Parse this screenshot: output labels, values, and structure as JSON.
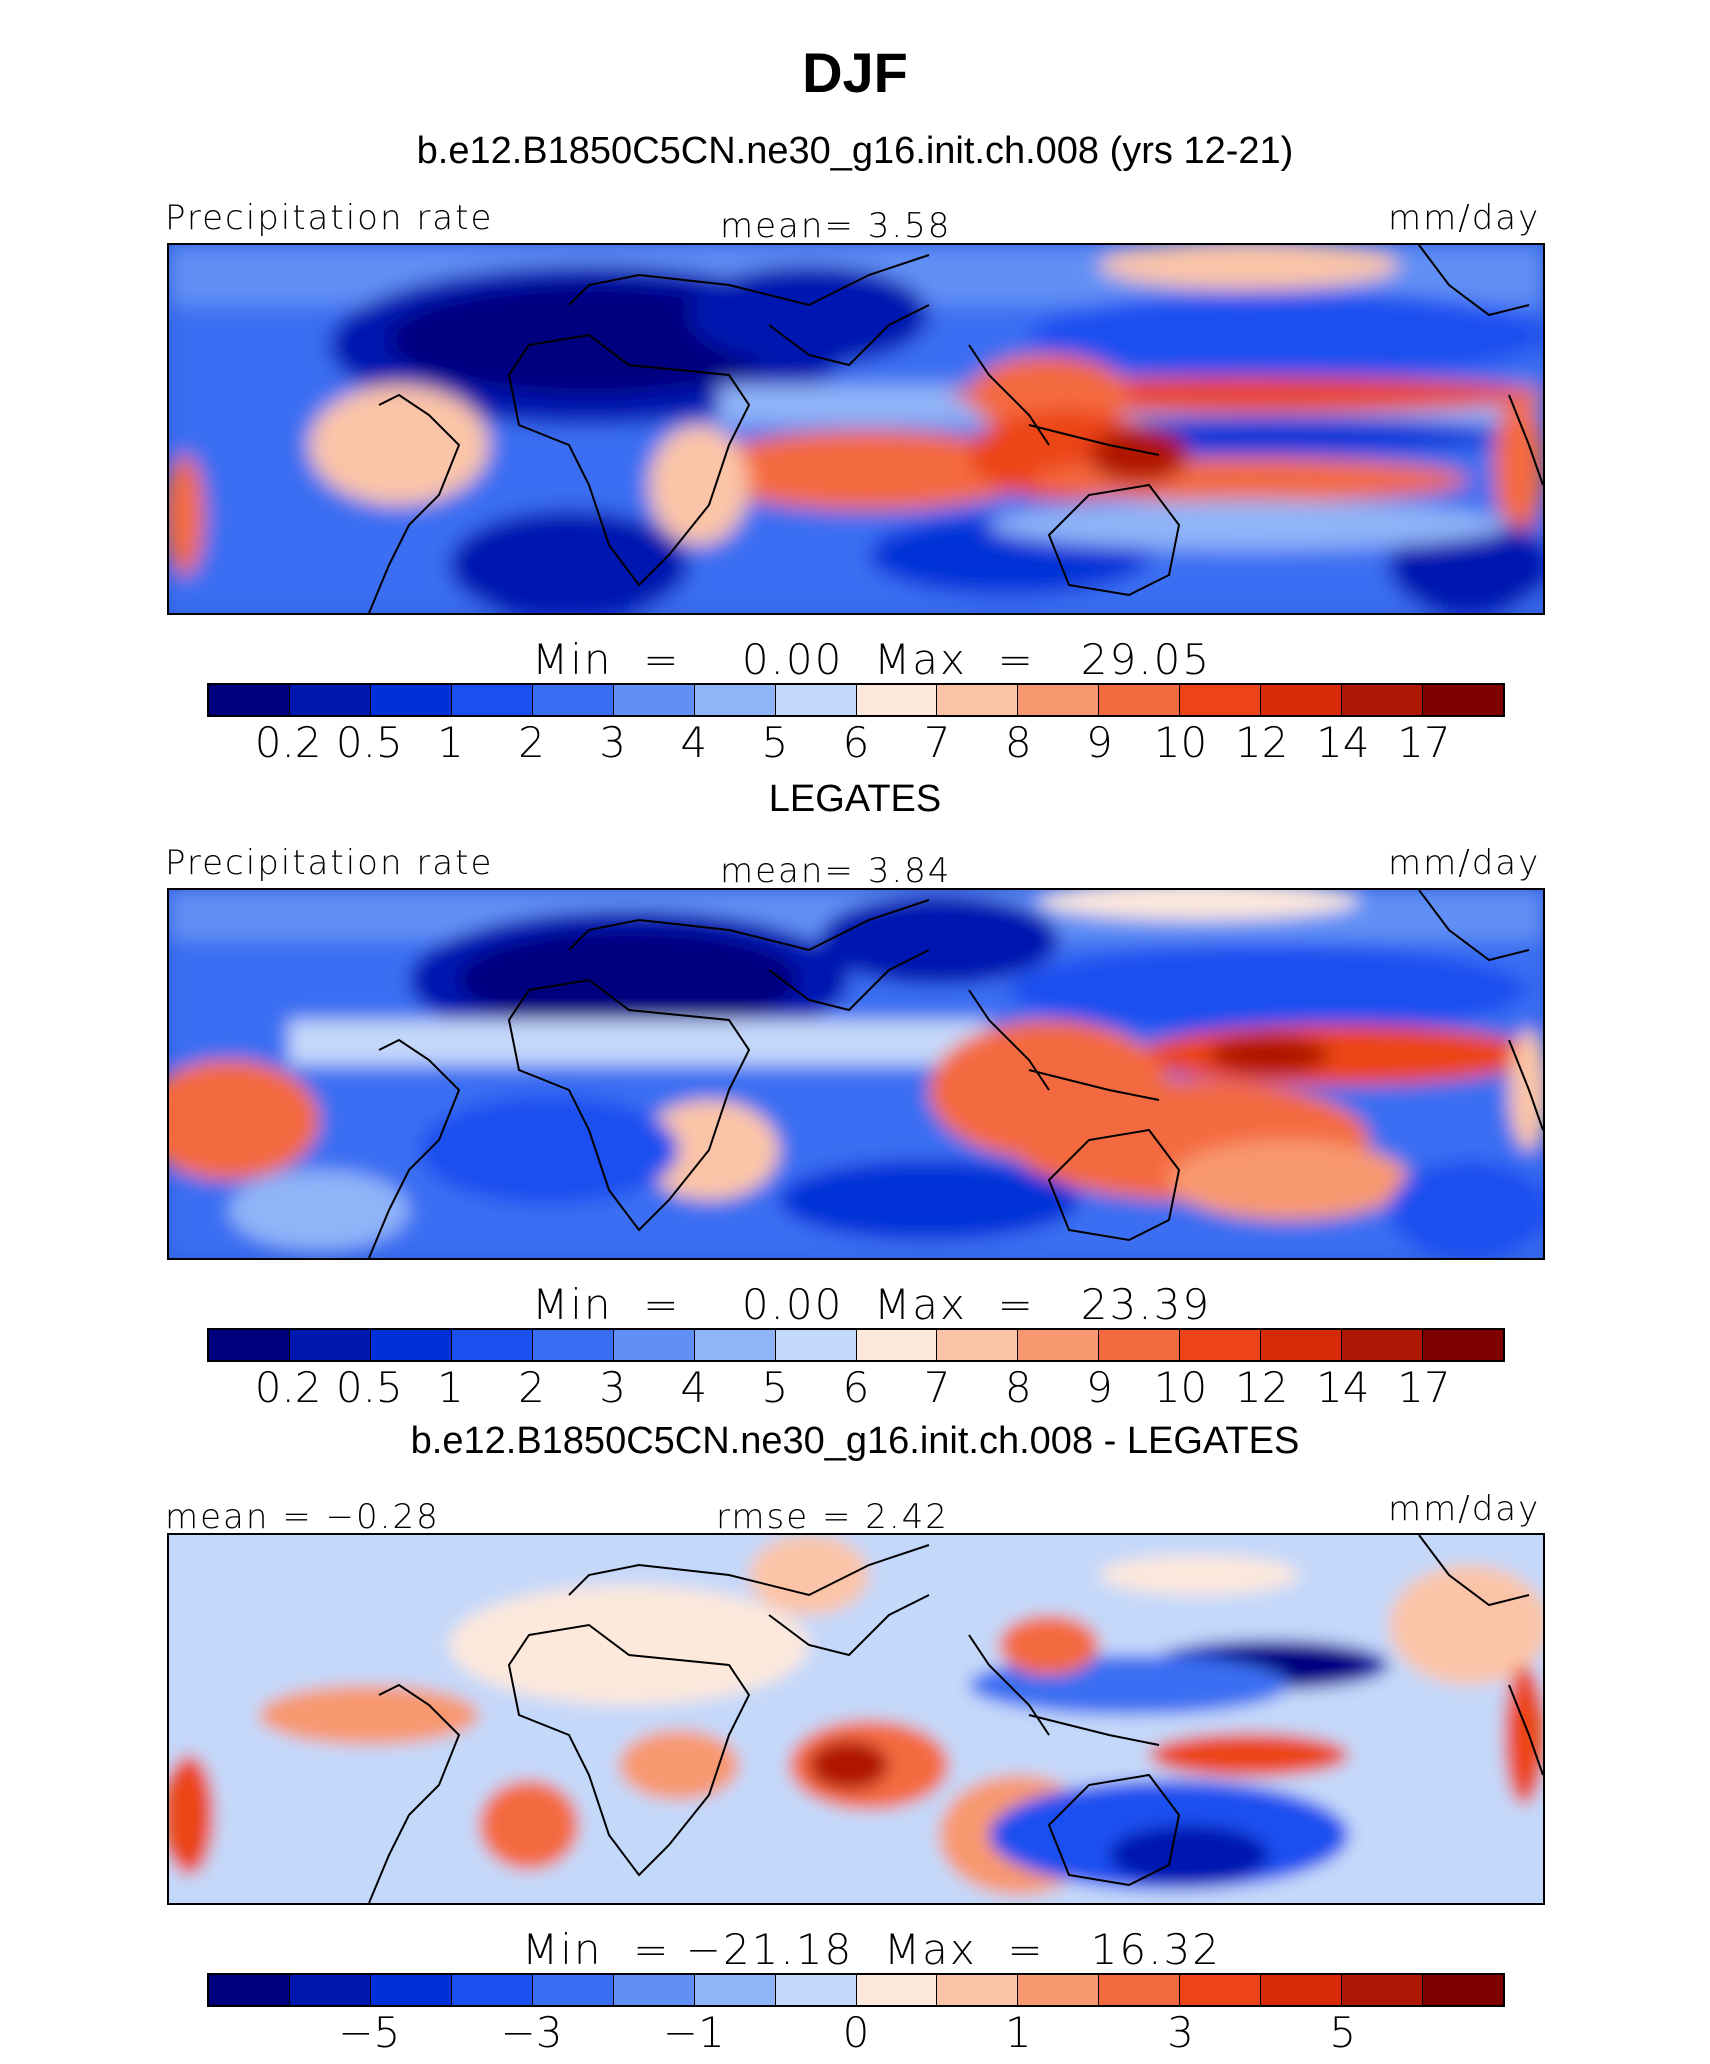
{
  "title": "DJF",
  "panels": [
    {
      "subtitle": "b.e12.B1850C5CN.ne30_g16.init.ch.008 (yrs 12-21)",
      "left_label": "Precipitation rate",
      "center_label": "mean=    3.58",
      "right_label": "mm/day",
      "minmax": "Min  =    0.00  Max  =   29.05",
      "colorbar_ticks": [
        "0.2",
        "0.5",
        "1",
        "2",
        "3",
        "4",
        "5",
        "6",
        "7",
        "8",
        "9",
        "10",
        "12",
        "14",
        "17"
      ]
    },
    {
      "subtitle": "LEGATES",
      "left_label": "Precipitation rate",
      "center_label": "mean=    3.84",
      "right_label": "mm/day",
      "minmax": "Min  =    0.00  Max  =   23.39",
      "colorbar_ticks": [
        "0.2",
        "0.5",
        "1",
        "2",
        "3",
        "4",
        "5",
        "6",
        "7",
        "8",
        "9",
        "10",
        "12",
        "14",
        "17"
      ]
    },
    {
      "subtitle": "b.e12.B1850C5CN.ne30_g16.init.ch.008 - LEGATES",
      "left_label": "mean  =   −0.28",
      "center_label": "rmse  =    2.42",
      "right_label": "mm/day",
      "minmax": "Min  = −21.18  Max  =   16.32",
      "colorbar_ticks": [
        "−5",
        "−3",
        "−1",
        "0",
        "1",
        "3",
        "5"
      ]
    }
  ],
  "colorbar_colors": [
    "#00007f",
    "#0018b0",
    "#0030d8",
    "#1a4ff0",
    "#3a6ef2",
    "#6090f5",
    "#90b4f8",
    "#c4d8fa",
    "#fde8dc",
    "#fbc4a8",
    "#f89870",
    "#f46a40",
    "#ec4418",
    "#d62a08",
    "#b01806",
    "#800000"
  ]
}
